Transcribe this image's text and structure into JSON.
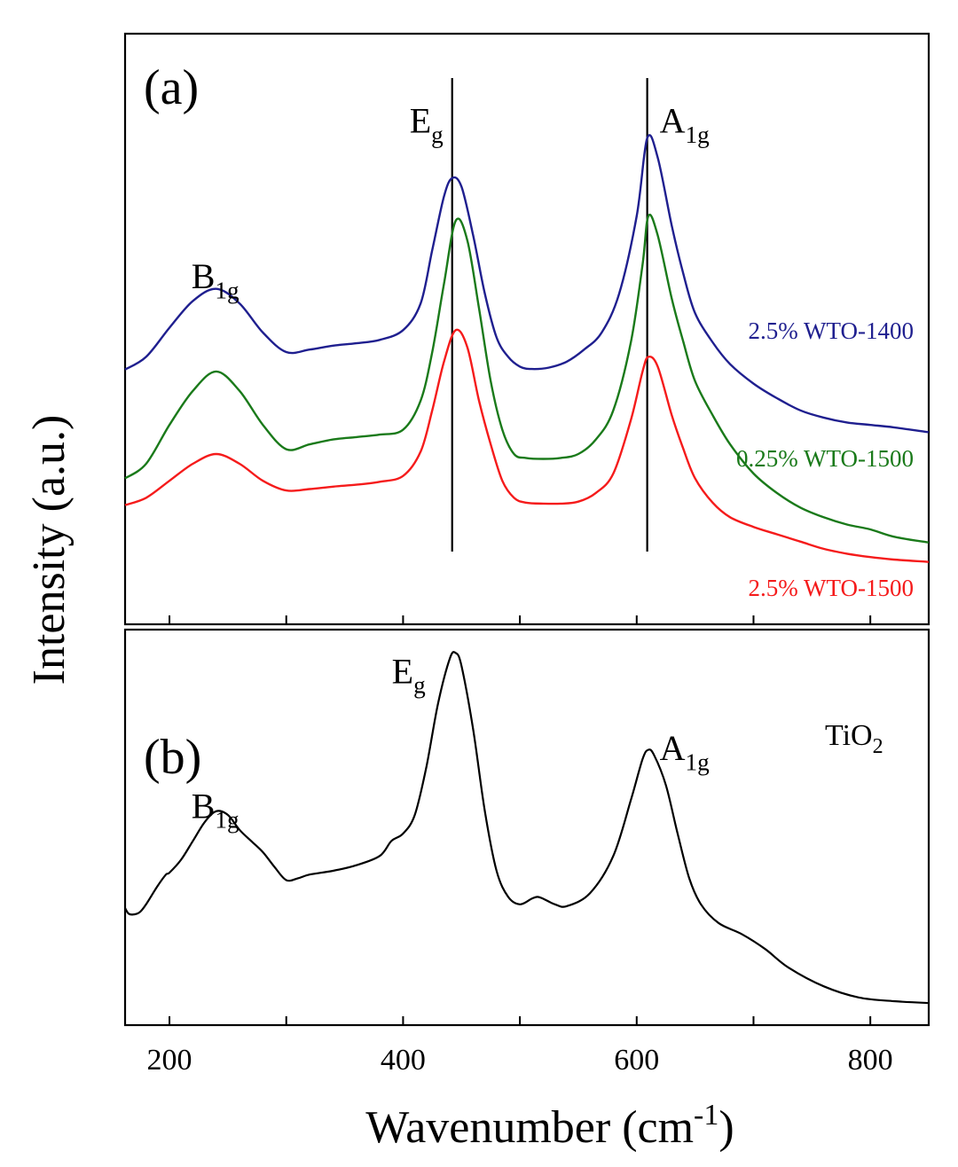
{
  "chart_data": {
    "type": "line",
    "xlabel": "Wavenumber (cm",
    "xlabel_sup": "-1",
    "xlabel_close": ")",
    "ylabel": "Intensity (a.u.)",
    "xlim": [
      162,
      850
    ],
    "x_ticks": [
      200,
      300,
      400,
      500,
      600,
      700,
      800
    ],
    "x_tick_labels": [
      "200",
      "400",
      "600",
      "800"
    ],
    "x_tick_label_values": [
      200,
      400,
      600,
      800
    ],
    "panels": [
      {
        "id": "a",
        "panel_label": "(a)",
        "ylim": [
          0,
          1
        ],
        "peak_markers": [
          {
            "base": "E",
            "sub": "g",
            "x": 442
          },
          {
            "base": "A",
            "sub": "1g",
            "x": 609
          }
        ],
        "peak_labels": [
          {
            "base": "E",
            "sub": "g",
            "x": 442,
            "y": 0.975
          },
          {
            "base": "A",
            "sub": "1g",
            "x": 609,
            "y": 0.975
          },
          {
            "base": "B",
            "sub": "1g",
            "x": 240,
            "y": 0.655
          }
        ],
        "series": [
          {
            "name": "2.5% WTO-1400",
            "color": "#1f1f8f",
            "x": [
              162,
              180,
              200,
              220,
              240,
              260,
              280,
              300,
              320,
              340,
              360,
              380,
              400,
              415,
              425,
              435,
              442,
              450,
              460,
              470,
              480,
              490,
              500,
              510,
              525,
              540,
              555,
              570,
              585,
              600,
              609,
              618,
              630,
              640,
              650,
              665,
              680,
              700,
              720,
              740,
              760,
              780,
              800,
              820,
              850
            ],
            "y": [
              0.444,
              0.47,
              0.53,
              0.585,
              0.61,
              0.58,
              0.52,
              0.48,
              0.485,
              0.493,
              0.498,
              0.505,
              0.525,
              0.58,
              0.69,
              0.8,
              0.838,
              0.82,
              0.72,
              0.6,
              0.51,
              0.47,
              0.45,
              0.445,
              0.448,
              0.46,
              0.485,
              0.52,
              0.6,
              0.76,
              0.92,
              0.88,
              0.74,
              0.64,
              0.56,
              0.5,
              0.455,
              0.415,
              0.385,
              0.36,
              0.345,
              0.335,
              0.33,
              0.325,
              0.315
            ]
          },
          {
            "name": "0.25% WTO-1500",
            "color": "#1a7a1a",
            "x": [
              162,
              180,
              200,
              220,
              240,
              260,
              280,
              300,
              320,
              340,
              360,
              380,
              400,
              415,
              425,
              435,
              445,
              455,
              465,
              475,
              485,
              495,
              505,
              520,
              535,
              550,
              565,
              580,
              595,
              605,
              610,
              618,
              630,
              640,
              650,
              665,
              680,
              700,
              720,
              740,
              760,
              780,
              800,
              820,
              850
            ],
            "y": [
              0.22,
              0.25,
              0.33,
              0.4,
              0.44,
              0.4,
              0.33,
              0.28,
              0.29,
              0.3,
              0.305,
              0.31,
              0.32,
              0.38,
              0.48,
              0.62,
              0.75,
              0.71,
              0.57,
              0.42,
              0.32,
              0.27,
              0.262,
              0.26,
              0.262,
              0.27,
              0.3,
              0.36,
              0.5,
              0.66,
              0.76,
              0.72,
              0.59,
              0.5,
              0.42,
              0.35,
              0.29,
              0.23,
              0.19,
              0.16,
              0.14,
              0.125,
              0.115,
              0.1,
              0.088
            ]
          },
          {
            "name": "2.5% WTO-1500",
            "color": "#f51b1b",
            "x": [
              162,
              180,
              200,
              220,
              240,
              260,
              280,
              300,
              320,
              340,
              360,
              380,
              400,
              415,
              425,
              435,
              445,
              455,
              465,
              475,
              485,
              495,
              505,
              520,
              535,
              550,
              565,
              580,
              595,
              605,
              610,
              618,
              630,
              640,
              650,
              665,
              680,
              700,
              720,
              740,
              760,
              780,
              800,
              820,
              850
            ],
            "y": [
              0.165,
              0.18,
              0.215,
              0.25,
              0.27,
              0.25,
              0.215,
              0.195,
              0.198,
              0.203,
              0.207,
              0.213,
              0.225,
              0.275,
              0.36,
              0.46,
              0.525,
              0.49,
              0.38,
              0.29,
              0.215,
              0.18,
              0.17,
              0.168,
              0.168,
              0.172,
              0.19,
              0.23,
              0.34,
              0.44,
              0.47,
              0.45,
              0.35,
              0.28,
              0.22,
              0.17,
              0.14,
              0.12,
              0.105,
              0.09,
              0.075,
              0.065,
              0.058,
              0.053,
              0.048
            ]
          }
        ]
      },
      {
        "id": "b",
        "panel_label": "(b)",
        "ylim": [
          0,
          1
        ],
        "legend_text": {
          "base": "TiO",
          "sub": "2"
        },
        "peak_labels": [
          {
            "base": "E",
            "sub": "g",
            "x": 445,
            "y": 0.975
          },
          {
            "base": "A",
            "sub": "1g",
            "x": 609,
            "y": 0.74
          },
          {
            "base": "B",
            "sub": "1g",
            "x": 240,
            "y": 0.585
          }
        ],
        "series": [
          {
            "name": "TiO2",
            "color": "#000000",
            "x": [
              162,
              165,
              170,
              175,
              180,
              190,
              197,
              200,
              210,
              220,
              230,
              240,
              250,
              260,
              270,
              280,
              290,
              300,
              310,
              320,
              340,
              360,
              380,
              390,
              400,
              410,
              420,
              430,
              440,
              445,
              450,
              460,
              470,
              480,
              490,
              500,
              510,
              515,
              520,
              530,
              540,
              560,
              580,
              595,
              605,
              610,
              615,
              625,
              635,
              645,
              655,
              670,
              690,
              710,
              730,
              760,
              790,
              820,
              850
            ],
            "y": [
              0.3,
              0.285,
              0.283,
              0.29,
              0.31,
              0.36,
              0.39,
              0.395,
              0.43,
              0.48,
              0.53,
              0.56,
              0.55,
              0.51,
              0.48,
              0.45,
              0.41,
              0.375,
              0.38,
              0.39,
              0.4,
              0.415,
              0.44,
              0.48,
              0.5,
              0.55,
              0.68,
              0.85,
              0.97,
              0.985,
              0.95,
              0.78,
              0.56,
              0.4,
              0.33,
              0.31,
              0.325,
              0.33,
              0.325,
              0.31,
              0.305,
              0.34,
              0.44,
              0.59,
              0.7,
              0.725,
              0.71,
              0.63,
              0.5,
              0.38,
              0.31,
              0.26,
              0.23,
              0.19,
              0.14,
              0.09,
              0.06,
              0.05,
              0.045
            ]
          }
        ]
      }
    ]
  }
}
